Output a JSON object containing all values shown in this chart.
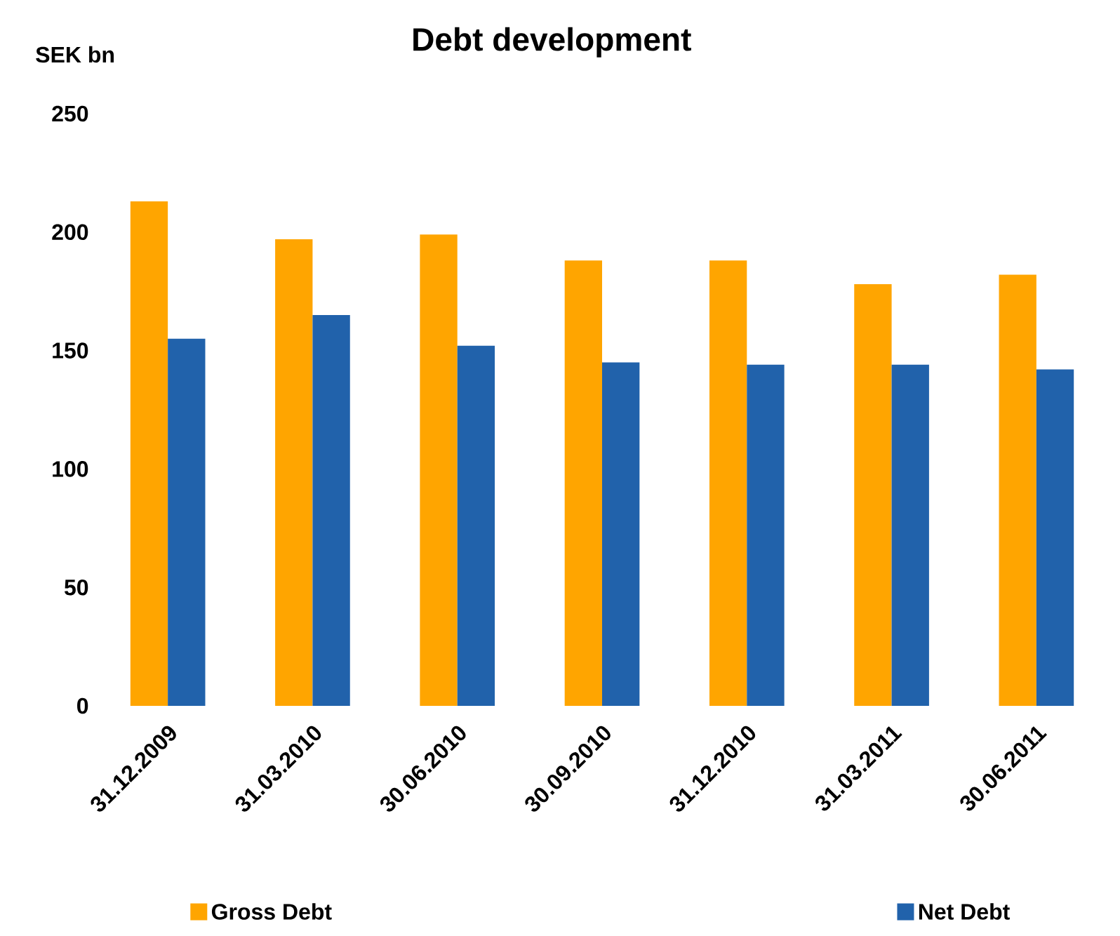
{
  "chart_data": {
    "type": "bar",
    "title": "Debt development",
    "ylabel": "SEK bn",
    "categories": [
      "31.12.2009",
      "31.03.2010",
      "30.06.2010",
      "30.09.2010",
      "31.12.2010",
      "31.03.2011",
      "30.06.2011"
    ],
    "series": [
      {
        "name": "Gross Debt",
        "color": "#ffa500",
        "values": [
          213,
          197,
          199,
          188,
          188,
          178,
          182
        ]
      },
      {
        "name": "Net Debt",
        "color": "#2162ab",
        "values": [
          155,
          165,
          152,
          145,
          144,
          144,
          142
        ]
      }
    ],
    "ylim": [
      0,
      250
    ],
    "yticks": [
      0,
      50,
      100,
      150,
      200,
      250
    ],
    "grid": false,
    "legend": "bottom"
  }
}
